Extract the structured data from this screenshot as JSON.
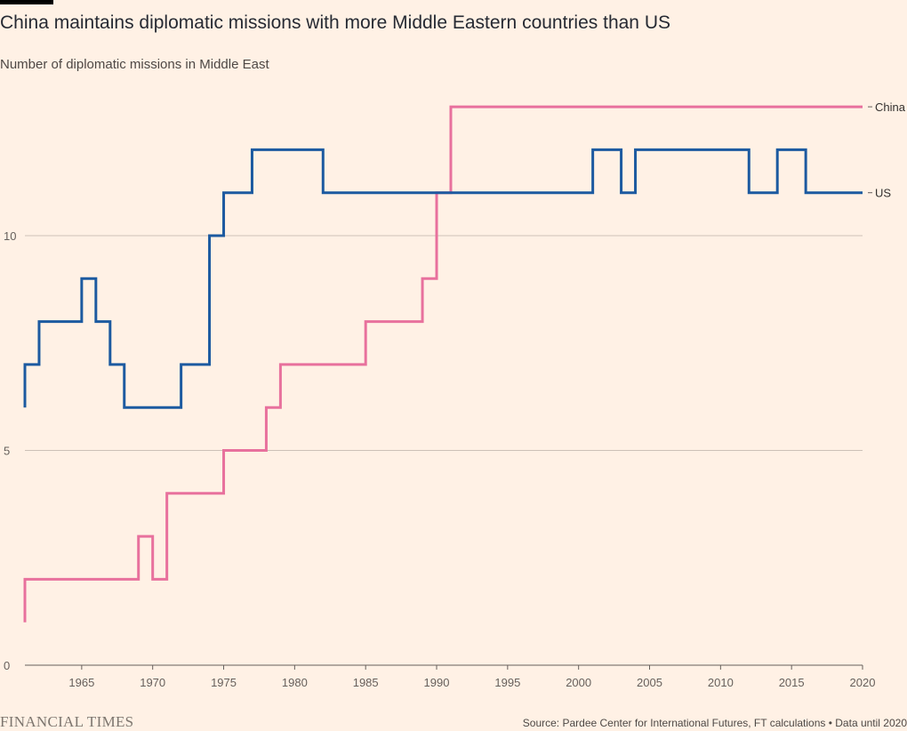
{
  "header": {
    "title": "China maintains diplomatic missions with more Middle Eastern countries than US",
    "subtitle": "Number of diplomatic missions in Middle East"
  },
  "footer": {
    "brand": "FINANCIAL TIMES",
    "source": "Source: Pardee Center for International Futures, FT calculations • Data until 2020"
  },
  "colors": {
    "background": "#fff1e5",
    "gridline": "#ccc1b7",
    "axis": "#66605c",
    "china": "#e8719d",
    "us": "#1c5aa0"
  },
  "chart_data": {
    "type": "line",
    "step": true,
    "title": "China maintains diplomatic missions with more Middle Eastern countries than US",
    "subtitle": "Number of diplomatic missions in Middle East",
    "xlabel": "",
    "ylabel": "",
    "xlim": [
      1961,
      2020
    ],
    "ylim": [
      0,
      13
    ],
    "xticks": [
      1965,
      1970,
      1975,
      1980,
      1985,
      1990,
      1995,
      2000,
      2005,
      2010,
      2015,
      2020
    ],
    "yticks": [
      0,
      5,
      10
    ],
    "grid": "horizontal",
    "legend": "direct labels at line ends",
    "series": [
      {
        "name": "China",
        "color": "#e8719d",
        "points": [
          [
            1961,
            1
          ],
          [
            1961,
            2
          ],
          [
            1969,
            3
          ],
          [
            1970,
            2
          ],
          [
            1971,
            4
          ],
          [
            1975,
            5
          ],
          [
            1978,
            6
          ],
          [
            1979,
            7
          ],
          [
            1985,
            8
          ],
          [
            1989,
            9
          ],
          [
            1990,
            11
          ],
          [
            1991,
            13
          ],
          [
            2020,
            13
          ]
        ]
      },
      {
        "name": "US",
        "color": "#1c5aa0",
        "points": [
          [
            1961,
            6
          ],
          [
            1961,
            7
          ],
          [
            1962,
            8
          ],
          [
            1965,
            9
          ],
          [
            1966,
            8
          ],
          [
            1967,
            7
          ],
          [
            1968,
            6
          ],
          [
            1972,
            7
          ],
          [
            1974,
            10
          ],
          [
            1975,
            11
          ],
          [
            1977,
            12
          ],
          [
            1982,
            11
          ],
          [
            2001,
            12
          ],
          [
            2003,
            11
          ],
          [
            2004,
            12
          ],
          [
            2012,
            11
          ],
          [
            2014,
            12
          ],
          [
            2016,
            11
          ],
          [
            2020,
            11
          ]
        ]
      }
    ]
  }
}
